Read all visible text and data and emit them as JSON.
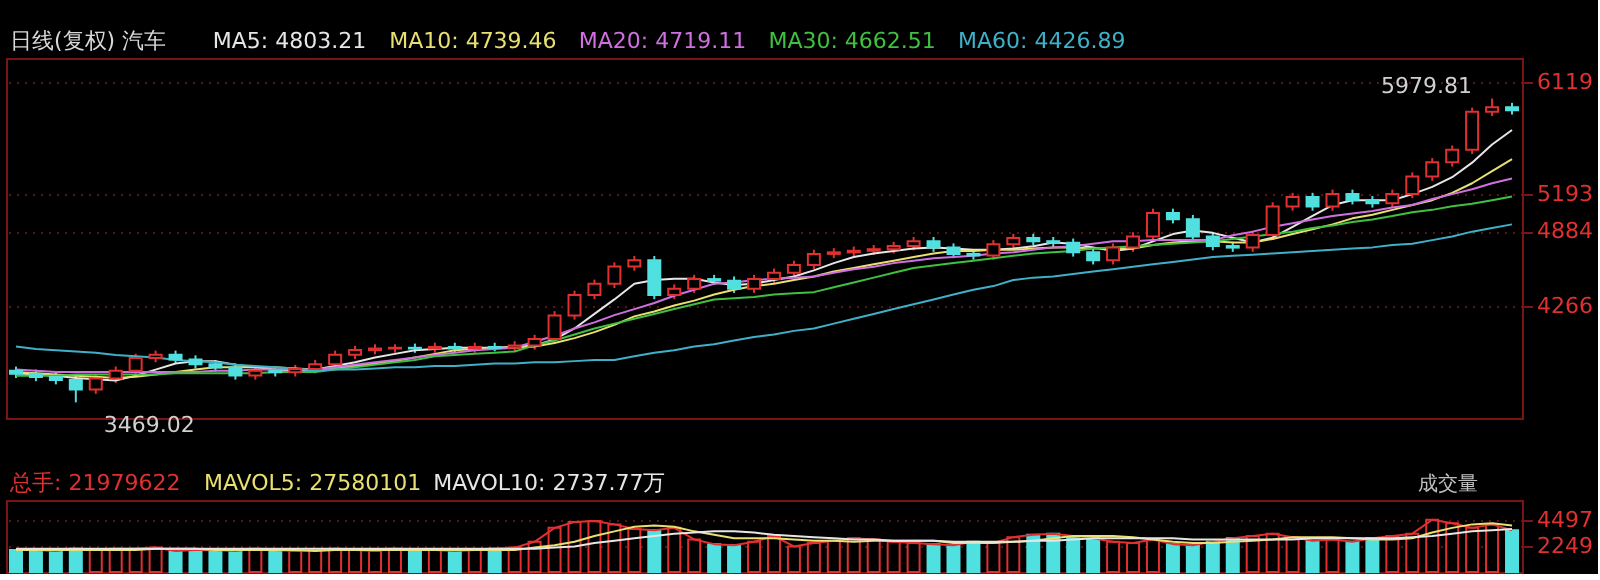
{
  "chart_data": [
    {
      "type": "candlestick",
      "title": "日线(复权)  汽车",
      "legend": "top",
      "grid": "y",
      "ylim": [
        3340,
        6315
      ],
      "yticks": [
        4266,
        4884,
        5193,
        6119
      ],
      "categories": [
        null,
        null,
        null,
        null,
        null,
        null,
        null,
        null,
        null,
        null,
        null,
        null,
        null,
        null,
        null,
        null,
        null,
        null,
        null,
        null,
        null,
        null,
        null,
        null,
        null,
        null,
        null,
        null,
        null,
        null,
        null,
        null,
        null,
        null,
        null,
        null,
        null,
        null,
        null,
        null,
        null,
        null,
        null,
        null,
        null,
        null,
        null,
        null,
        null,
        null,
        null,
        null,
        null,
        null,
        null,
        null,
        null,
        null,
        null,
        null,
        null,
        null,
        null,
        null,
        null,
        null,
        null,
        null,
        null,
        null,
        null,
        null,
        null,
        null,
        null,
        null
      ],
      "ohlc": [
        [
          3730,
          3765,
          3670,
          3705
        ],
        [
          3705,
          3740,
          3644,
          3679
        ],
        [
          3679,
          3714,
          3618,
          3653
        ],
        [
          3653,
          3688,
          3469.02,
          3575
        ],
        [
          3575,
          3701,
          3540,
          3666
        ],
        [
          3666,
          3766,
          3631,
          3731
        ],
        [
          3731,
          3871,
          3696,
          3836
        ],
        [
          3836,
          3897,
          3801,
          3862
        ],
        [
          3862,
          3897,
          3788,
          3823
        ],
        [
          3823,
          3858,
          3749,
          3784
        ],
        [
          3784,
          3819,
          3722,
          3757
        ],
        [
          3757,
          3792,
          3657,
          3692
        ],
        [
          3692,
          3766,
          3657,
          3731
        ],
        [
          3731,
          3766,
          3683,
          3718
        ],
        [
          3718,
          3779,
          3683,
          3744
        ],
        [
          3744,
          3819,
          3709,
          3784
        ],
        [
          3784,
          3897,
          3749,
          3862
        ],
        [
          3862,
          3936,
          3827,
          3901
        ],
        [
          3901,
          3949,
          3866,
          3914
        ],
        [
          3914,
          3949,
          3879,
          3920
        ],
        [
          3920,
          3955,
          3879,
          3914
        ],
        [
          3914,
          3962,
          3879,
          3927
        ],
        [
          3927,
          3962,
          3879,
          3914
        ],
        [
          3914,
          3962,
          3879,
          3927
        ],
        [
          3927,
          3962,
          3892,
          3920
        ],
        [
          3920,
          3975,
          3885,
          3940
        ],
        [
          3940,
          4027,
          3905,
          3992
        ],
        [
          3992,
          4223,
          3957,
          4188
        ],
        [
          4188,
          4392,
          4153,
          4357
        ],
        [
          4357,
          4484,
          4322,
          4449
        ],
        [
          4449,
          4627,
          4414,
          4592
        ],
        [
          4592,
          4679,
          4557,
          4644
        ],
        [
          4644,
          4679,
          4322,
          4357
        ],
        [
          4357,
          4444,
          4322,
          4409
        ],
        [
          4409,
          4523,
          4374,
          4488
        ],
        [
          4488,
          4523,
          4440,
          4475
        ],
        [
          4475,
          4510,
          4374,
          4409
        ],
        [
          4409,
          4523,
          4374,
          4488
        ],
        [
          4488,
          4575,
          4453,
          4540
        ],
        [
          4540,
          4640,
          4505,
          4605
        ],
        [
          4605,
          4731,
          4570,
          4696
        ],
        [
          4696,
          4744,
          4661,
          4709
        ],
        [
          4709,
          4757,
          4674,
          4722
        ],
        [
          4722,
          4770,
          4687,
          4735
        ],
        [
          4735,
          4796,
          4700,
          4761
        ],
        [
          4761,
          4836,
          4726,
          4801
        ],
        [
          4801,
          4836,
          4713,
          4748
        ],
        [
          4748,
          4783,
          4661,
          4696
        ],
        [
          4696,
          4731,
          4648,
          4683
        ],
        [
          4683,
          4810,
          4648,
          4775
        ],
        [
          4775,
          4862,
          4740,
          4827
        ],
        [
          4827,
          4862,
          4766,
          4801
        ],
        [
          4801,
          4836,
          4753,
          4788
        ],
        [
          4788,
          4823,
          4674,
          4709
        ],
        [
          4709,
          4744,
          4609,
          4644
        ],
        [
          4644,
          4783,
          4609,
          4748
        ],
        [
          4748,
          4875,
          4713,
          4840
        ],
        [
          4840,
          5070,
          4805,
          5035
        ],
        [
          5035,
          5070,
          4948,
          4983
        ],
        [
          4983,
          5018,
          4805,
          4840
        ],
        [
          4840,
          4875,
          4726,
          4761
        ],
        [
          4761,
          4796,
          4713,
          4748
        ],
        [
          4748,
          4888,
          4713,
          4853
        ],
        [
          4853,
          5123,
          4818,
          5088
        ],
        [
          5088,
          5201,
          5053,
          5166
        ],
        [
          5166,
          5201,
          5053,
          5088
        ],
        [
          5088,
          5227,
          5053,
          5192
        ],
        [
          5192,
          5227,
          5105,
          5140
        ],
        [
          5140,
          5175,
          5079,
          5114
        ],
        [
          5114,
          5227,
          5079,
          5192
        ],
        [
          5192,
          5370,
          5157,
          5335
        ],
        [
          5335,
          5488,
          5300,
          5453
        ],
        [
          5453,
          5592,
          5418,
          5557
        ],
        [
          5557,
          5905,
          5522,
          5870
        ],
        [
          5870,
          5979.81,
          5835,
          5909
        ],
        [
          5909,
          5944,
          5848,
          5883
        ]
      ],
      "colors": [
        "#50e0e0",
        "#50e0e0",
        "#50e0e0",
        "#50e0e0",
        "#e03030",
        "#e03030",
        "#e03030",
        "#e03030",
        "#50e0e0",
        "#50e0e0",
        "#50e0e0",
        "#50e0e0",
        "#e03030",
        "#50e0e0",
        "#e03030",
        "#e03030",
        "#e03030",
        "#e03030",
        "#e03030",
        "#e03030",
        "#50e0e0",
        "#e03030",
        "#50e0e0",
        "#e03030",
        "#50e0e0",
        "#e03030",
        "#e03030",
        "#e03030",
        "#e03030",
        "#e03030",
        "#e03030",
        "#e03030",
        "#50e0e0",
        "#e03030",
        "#e03030",
        "#50e0e0",
        "#50e0e0",
        "#e03030",
        "#e03030",
        "#e03030",
        "#e03030",
        "#e03030",
        "#e03030",
        "#e03030",
        "#e03030",
        "#e03030",
        "#50e0e0",
        "#50e0e0",
        "#50e0e0",
        "#e03030",
        "#e03030",
        "#50e0e0",
        "#50e0e0",
        "#50e0e0",
        "#50e0e0",
        "#e03030",
        "#e03030",
        "#e03030",
        "#50e0e0",
        "#50e0e0",
        "#50e0e0",
        "#50e0e0",
        "#e03030",
        "#e03030",
        "#e03030",
        "#50e0e0",
        "#e03030",
        "#50e0e0",
        "#50e0e0",
        "#e03030",
        "#e03030",
        "#e03030",
        "#e03030",
        "#e03030",
        "#e03030",
        "#50e0e0"
      ],
      "series": [
        {
          "name": "MA5: 4803.21",
          "type": "line",
          "color": "#e6e6e6",
          "values": [
            3710,
            3700,
            3690,
            3670,
            3660,
            3650,
            3690,
            3740,
            3790,
            3810,
            3810,
            3780,
            3760,
            3740,
            3730,
            3740,
            3770,
            3800,
            3840,
            3870,
            3900,
            3910,
            3920,
            3920,
            3920,
            3930,
            3940,
            3990,
            4080,
            4200,
            4320,
            4450,
            4480,
            4490,
            4490,
            4460,
            4440,
            4450,
            4480,
            4510,
            4560,
            4620,
            4670,
            4700,
            4720,
            4740,
            4750,
            4740,
            4730,
            4730,
            4740,
            4760,
            4790,
            4780,
            4750,
            4720,
            4740,
            4800,
            4860,
            4890,
            4870,
            4830,
            4790,
            4830,
            4920,
            5010,
            5100,
            5140,
            5140,
            5140,
            5190,
            5250,
            5330,
            5450,
            5600,
            5720
          ]
        },
        {
          "name": "MA10: 4739.46",
          "type": "line",
          "color": "#e8e070",
          "values": [
            3720,
            3710,
            3700,
            3690,
            3680,
            3670,
            3680,
            3700,
            3720,
            3740,
            3760,
            3760,
            3760,
            3760,
            3750,
            3740,
            3750,
            3770,
            3790,
            3810,
            3840,
            3870,
            3900,
            3910,
            3920,
            3920,
            3930,
            3960,
            4000,
            4050,
            4110,
            4180,
            4220,
            4270,
            4310,
            4360,
            4400,
            4430,
            4450,
            4480,
            4510,
            4550,
            4580,
            4610,
            4640,
            4670,
            4700,
            4720,
            4720,
            4730,
            4730,
            4740,
            4750,
            4750,
            4740,
            4740,
            4740,
            4770,
            4790,
            4800,
            4800,
            4790,
            4790,
            4820,
            4860,
            4900,
            4940,
            4990,
            5020,
            5060,
            5100,
            5140,
            5200,
            5280,
            5380,
            5480
          ]
        },
        {
          "name": "MA20: 4719.11",
          "type": "line",
          "color": "#d070e0",
          "values": [
            3740,
            3730,
            3720,
            3720,
            3720,
            3720,
            3720,
            3720,
            3720,
            3720,
            3730,
            3730,
            3740,
            3740,
            3740,
            3740,
            3760,
            3780,
            3800,
            3820,
            3840,
            3860,
            3880,
            3900,
            3910,
            3920,
            3970,
            4020,
            4080,
            4130,
            4190,
            4240,
            4290,
            4350,
            4400,
            4450,
            4460,
            4480,
            4490,
            4500,
            4510,
            4540,
            4570,
            4590,
            4620,
            4640,
            4660,
            4670,
            4680,
            4700,
            4710,
            4730,
            4750,
            4760,
            4780,
            4800,
            4800,
            4810,
            4810,
            4810,
            4810,
            4850,
            4880,
            4920,
            4950,
            4980,
            5010,
            5030,
            5050,
            5080,
            5100,
            5150,
            5190,
            5230,
            5280,
            5320
          ]
        },
        {
          "name": "MA30: 4662.51",
          "type": "line",
          "color": "#40c040",
          "values": [
            3690,
            3690,
            3690,
            3700,
            3700,
            3700,
            3700,
            3700,
            3710,
            3710,
            3710,
            3710,
            3710,
            3720,
            3720,
            3720,
            3740,
            3760,
            3780,
            3800,
            3820,
            3850,
            3860,
            3870,
            3880,
            3890,
            3940,
            3980,
            4030,
            4080,
            4120,
            4160,
            4200,
            4240,
            4280,
            4320,
            4330,
            4340,
            4360,
            4370,
            4380,
            4420,
            4460,
            4500,
            4540,
            4580,
            4600,
            4620,
            4640,
            4660,
            4680,
            4700,
            4710,
            4720,
            4740,
            4750,
            4760,
            4770,
            4780,
            4790,
            4800,
            4820,
            4840,
            4860,
            4880,
            4910,
            4930,
            4960,
            4980,
            5010,
            5040,
            5060,
            5090,
            5110,
            5140,
            5170
          ]
        },
        {
          "name": "MA60: 4426.89",
          "type": "line",
          "color": "#40b0c8",
          "values": [
            3930,
            3910,
            3900,
            3890,
            3880,
            3860,
            3850,
            3840,
            3820,
            3810,
            3800,
            3780,
            3770,
            3760,
            3750,
            3730,
            3740,
            3740,
            3750,
            3760,
            3760,
            3770,
            3770,
            3780,
            3790,
            3790,
            3800,
            3800,
            3810,
            3820,
            3820,
            3850,
            3880,
            3900,
            3930,
            3950,
            3980,
            4010,
            4030,
            4060,
            4080,
            4120,
            4160,
            4200,
            4240,
            4280,
            4320,
            4360,
            4400,
            4430,
            4480,
            4500,
            4510,
            4530,
            4550,
            4570,
            4590,
            4610,
            4630,
            4650,
            4670,
            4680,
            4690,
            4700,
            4710,
            4720,
            4730,
            4740,
            4750,
            4770,
            4780,
            4810,
            4840,
            4880,
            4910,
            4940
          ]
        }
      ],
      "annotations": [
        "5979.81",
        "3469.02"
      ]
    },
    {
      "type": "bar",
      "legend": "top",
      "grid": "y",
      "ylim": [
        0,
        6200
      ],
      "yticks": [
        2249,
        4497
      ],
      "categories": [
        null,
        null,
        null,
        null,
        null,
        null,
        null,
        null,
        null,
        null,
        null,
        null,
        null,
        null,
        null,
        null,
        null,
        null,
        null,
        null,
        null,
        null,
        null,
        null,
        null,
        null,
        null,
        null,
        null,
        null,
        null,
        null,
        null,
        null,
        null,
        null,
        null,
        null,
        null,
        null,
        null,
        null,
        null,
        null,
        null,
        null,
        null,
        null,
        null,
        null,
        null,
        null,
        null,
        null,
        null,
        null,
        null,
        null,
        null,
        null,
        null,
        null,
        null,
        null,
        null,
        null,
        null,
        null,
        null,
        null,
        null,
        null,
        null,
        null,
        null,
        null
      ],
      "series": [
        {
          "name": "总手: 21979622",
          "color": "#e03030",
          "colors": [
            "#50e0e0",
            "#50e0e0",
            "#50e0e0",
            "#50e0e0",
            "#e03030",
            "#e03030",
            "#e03030",
            "#e03030",
            "#50e0e0",
            "#50e0e0",
            "#50e0e0",
            "#50e0e0",
            "#e03030",
            "#50e0e0",
            "#e03030",
            "#e03030",
            "#e03030",
            "#e03030",
            "#e03030",
            "#e03030",
            "#50e0e0",
            "#e03030",
            "#50e0e0",
            "#e03030",
            "#50e0e0",
            "#e03030",
            "#e03030",
            "#e03030",
            "#e03030",
            "#e03030",
            "#e03030",
            "#e03030",
            "#50e0e0",
            "#e03030",
            "#e03030",
            "#50e0e0",
            "#50e0e0",
            "#e03030",
            "#e03030",
            "#e03030",
            "#e03030",
            "#e03030",
            "#e03030",
            "#e03030",
            "#e03030",
            "#e03030",
            "#50e0e0",
            "#50e0e0",
            "#50e0e0",
            "#e03030",
            "#e03030",
            "#50e0e0",
            "#50e0e0",
            "#50e0e0",
            "#50e0e0",
            "#e03030",
            "#e03030",
            "#e03030",
            "#50e0e0",
            "#50e0e0",
            "#50e0e0",
            "#50e0e0",
            "#e03030",
            "#e03030",
            "#e03030",
            "#50e0e0",
            "#e03030",
            "#50e0e0",
            "#50e0e0",
            "#e03030",
            "#e03030",
            "#e03030",
            "#e03030",
            "#e03030",
            "#e03030",
            "#50e0e0"
          ],
          "values": [
            1900,
            1900,
            1800,
            2000,
            1900,
            2000,
            2000,
            2100,
            1800,
            1900,
            1900,
            1800,
            2000,
            1900,
            1800,
            1900,
            2000,
            1900,
            1800,
            2000,
            1900,
            1900,
            1800,
            1900,
            2000,
            2100,
            2600,
            3800,
            4300,
            4400,
            4100,
            3700,
            3600,
            3800,
            2800,
            2400,
            2300,
            2600,
            3100,
            2200,
            2500,
            2700,
            2900,
            2800,
            2600,
            2500,
            2400,
            2300,
            2600,
            2500,
            3000,
            3200,
            3300,
            3100,
            2900,
            2600,
            2500,
            2800,
            2400,
            2300,
            2600,
            2900,
            3100,
            3300,
            3000,
            2700,
            2800,
            2600,
            2900,
            3100,
            3300,
            4497,
            4200,
            3800,
            4100,
            3600
          ]
        },
        {
          "name": "MAVOL5: 27580101",
          "type": "line",
          "color": "#e8e070",
          "values": [
            1900,
            1900,
            1900,
            1900,
            1900,
            1900,
            1900,
            2000,
            2000,
            2000,
            1900,
            1900,
            1900,
            1900,
            1900,
            1800,
            1900,
            1900,
            1900,
            1900,
            1900,
            1900,
            1900,
            1900,
            1900,
            1900,
            2100,
            2300,
            2600,
            3100,
            3500,
            3900,
            4000,
            3900,
            3500,
            3200,
            2900,
            2900,
            2900,
            2800,
            2700,
            2700,
            2600,
            2700,
            2700,
            2700,
            2700,
            2500,
            2500,
            2500,
            2600,
            2700,
            2900,
            3100,
            3100,
            3100,
            3000,
            2800,
            2600,
            2500,
            2500,
            2600,
            2700,
            2800,
            3000,
            3000,
            3000,
            2900,
            2800,
            2800,
            2900,
            3400,
            3800,
            4100,
            4200,
            4000
          ]
        },
        {
          "name": "MAVOL10: 2737.77万",
          "type": "line",
          "color": "#e6e6e6",
          "values": [
            2000,
            2000,
            2000,
            2000,
            2000,
            2000,
            2000,
            2000,
            2000,
            2000,
            2000,
            2000,
            2000,
            2000,
            2000,
            2000,
            2000,
            2000,
            2000,
            2000,
            2000,
            2000,
            2000,
            2000,
            2000,
            2000,
            2000,
            2100,
            2200,
            2500,
            2700,
            2900,
            3100,
            3300,
            3400,
            3500,
            3500,
            3400,
            3200,
            3100,
            3000,
            2900,
            2800,
            2800,
            2700,
            2700,
            2700,
            2600,
            2600,
            2600,
            2600,
            2700,
            2700,
            2800,
            2900,
            2900,
            2900,
            2900,
            2900,
            2800,
            2800,
            2800,
            2800,
            2800,
            2800,
            2900,
            2900,
            2900,
            2900,
            2900,
            3000,
            3100,
            3300,
            3500,
            3600,
            3700
          ]
        }
      ],
      "annotations": [
        "成交量"
      ]
    }
  ]
}
